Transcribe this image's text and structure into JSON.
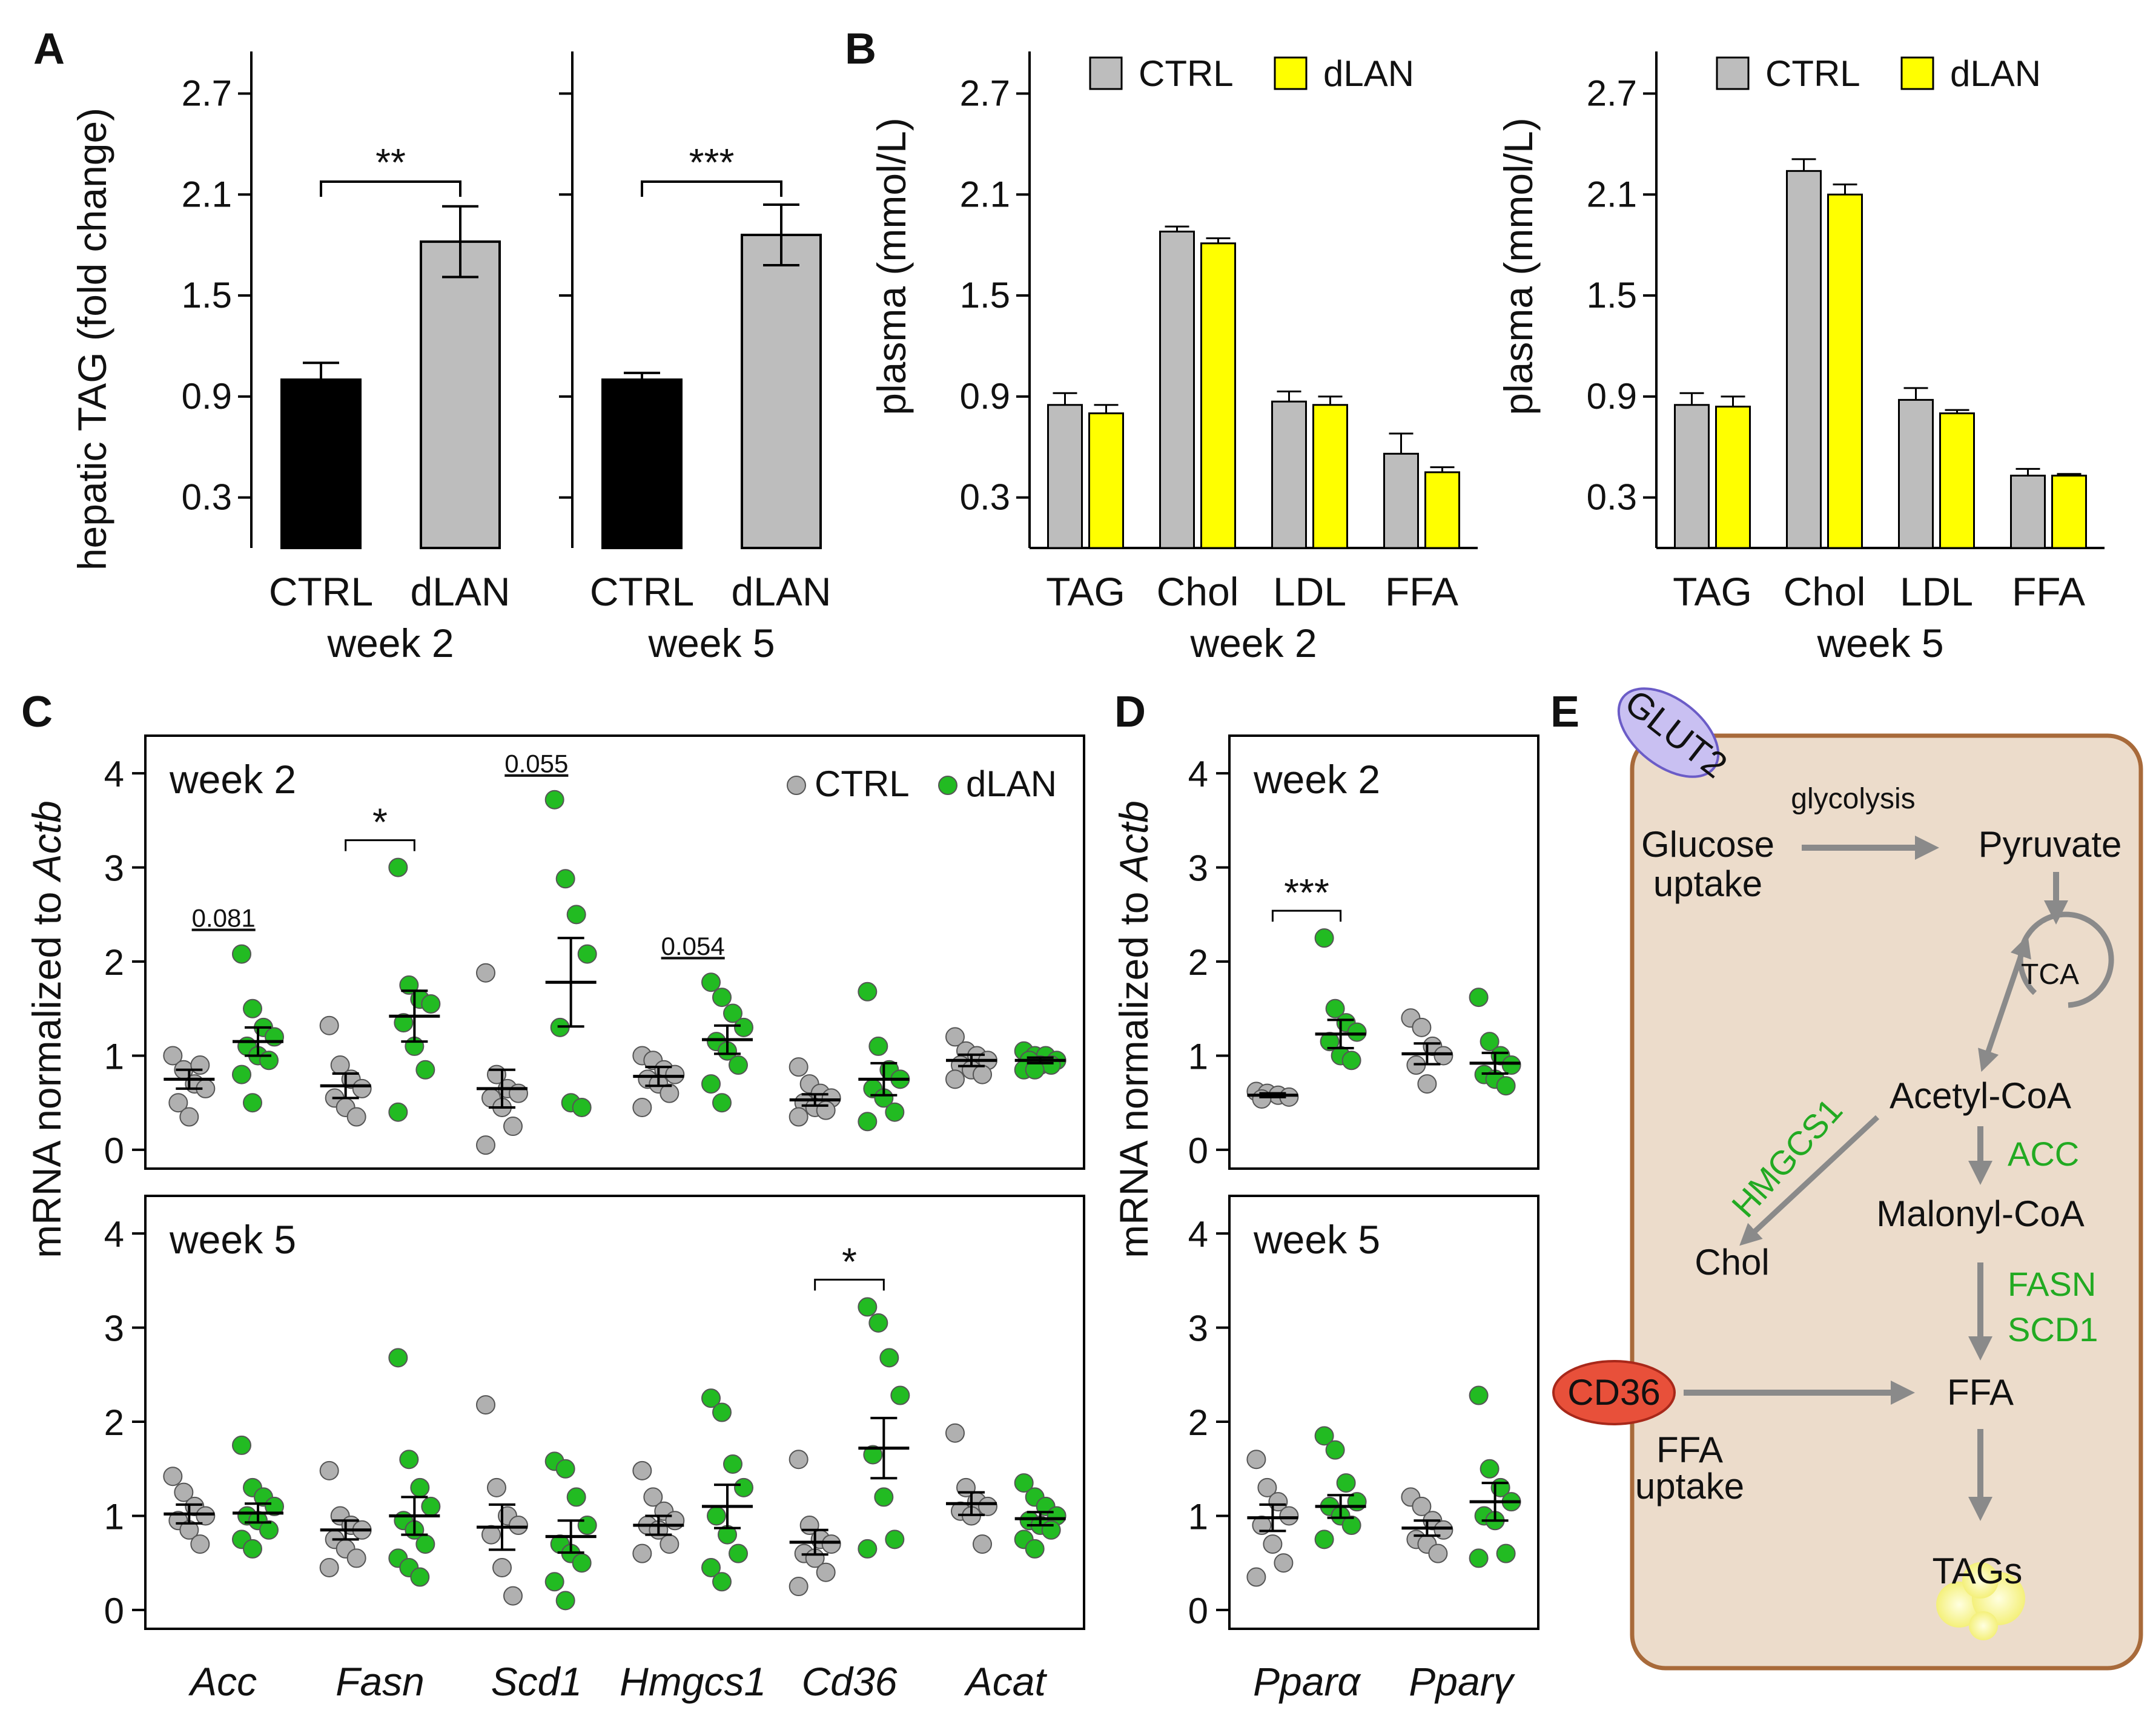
{
  "panels": {
    "A": "A",
    "B": "B",
    "C": "C",
    "D": "D",
    "E": "E"
  },
  "colors": {
    "ctrl_dark": "#000000",
    "dlan_gray": "#bdbdbd",
    "ctrl_gray": "#bdbdbd",
    "dlan_yellow": "#ffff00",
    "dot_ctrl": "#b0b0b0",
    "dot_dlan": "#22bb22",
    "pathway_bg": "#ecdccb",
    "pathway_border": "#a86a3a",
    "enzyme_green": "#22aa22",
    "glut2_fill": "#c9c0f2",
    "cd36_fill": "#e8503a",
    "arrow_gray": "#8a8a8a"
  },
  "chart_data": [
    {
      "id": "A-week2",
      "type": "bar",
      "ylabel": "hepatic TAG (fold change)",
      "ylim": [
        0,
        2.95
      ],
      "yticks": [
        "0.3",
        "0.9",
        "1.5",
        "2.1",
        "2.7"
      ],
      "categories": [
        "CTRL",
        "dLAN"
      ],
      "values": [
        1.0,
        1.82
      ],
      "errors": [
        0.1,
        0.21
      ],
      "xlabel": "week 2",
      "significance": "**"
    },
    {
      "id": "A-week5",
      "type": "bar",
      "ylim": [
        0,
        2.95
      ],
      "categories": [
        "CTRL",
        "dLAN"
      ],
      "values": [
        1.0,
        1.86
      ],
      "errors": [
        0.04,
        0.18
      ],
      "xlabel": "week 5",
      "significance": "***"
    },
    {
      "id": "B-week2",
      "type": "bar",
      "ylabel": "plasma (mmol/L)",
      "ylim": [
        0,
        2.95
      ],
      "yticks": [
        "0.3",
        "0.9",
        "1.5",
        "2.1",
        "2.7"
      ],
      "legend": [
        "CTRL",
        "dLAN"
      ],
      "categories": [
        "TAG",
        "Chol",
        "LDL",
        "FFA"
      ],
      "series": [
        {
          "name": "CTRL",
          "values": [
            0.85,
            1.88,
            0.87,
            0.56
          ],
          "errors": [
            0.07,
            0.03,
            0.06,
            0.12
          ]
        },
        {
          "name": "dLAN",
          "values": [
            0.8,
            1.81,
            0.85,
            0.45
          ],
          "errors": [
            0.05,
            0.03,
            0.05,
            0.03
          ]
        }
      ],
      "xlabel": "week 2"
    },
    {
      "id": "B-week5",
      "type": "bar",
      "ylabel": "plasma (mmol/L)",
      "ylim": [
        0,
        2.95
      ],
      "yticks": [
        "0.3",
        "0.9",
        "1.5",
        "2.1",
        "2.7"
      ],
      "legend": [
        "CTRL",
        "dLAN"
      ],
      "categories": [
        "TAG",
        "Chol",
        "LDL",
        "FFA"
      ],
      "series": [
        {
          "name": "CTRL",
          "values": [
            0.85,
            2.24,
            0.88,
            0.43
          ],
          "errors": [
            0.07,
            0.07,
            0.07,
            0.04
          ]
        },
        {
          "name": "dLAN",
          "values": [
            0.84,
            2.1,
            0.8,
            0.43
          ],
          "errors": [
            0.06,
            0.06,
            0.02,
            0.01
          ]
        }
      ],
      "xlabel": "week 5"
    },
    {
      "id": "C-week2",
      "type": "scatter",
      "ylabel": "mRNA normalized to ",
      "ylabel_italic": "Actb",
      "ylim": [
        -0.2,
        4.4
      ],
      "yticks": [
        "0",
        "1",
        "2",
        "3",
        "4"
      ],
      "title": "week 2",
      "legend": [
        "CTRL",
        "dLAN"
      ],
      "genes": [
        "Acc",
        "Fasn",
        "Scd1",
        "Hmgcs1",
        "Cd36",
        "Acat"
      ],
      "groups": [
        {
          "gene": "Acc",
          "group": "CTRL",
          "values": [
            1.0,
            0.85,
            0.7,
            0.65,
            0.5,
            0.35,
            0.9
          ],
          "mean": 0.75,
          "sem": 0.1
        },
        {
          "gene": "Acc",
          "group": "dLAN",
          "values": [
            2.08,
            1.5,
            1.3,
            1.2,
            1.1,
            1.0,
            0.95,
            0.8,
            0.5
          ],
          "mean": 1.15,
          "sem": 0.15
        },
        {
          "gene": "Fasn",
          "group": "CTRL",
          "values": [
            1.32,
            0.9,
            0.75,
            0.65,
            0.55,
            0.45,
            0.35
          ],
          "mean": 0.68,
          "sem": 0.13
        },
        {
          "gene": "Fasn",
          "group": "dLAN",
          "values": [
            3.0,
            1.75,
            1.6,
            1.55,
            1.35,
            1.1,
            0.85,
            0.4
          ],
          "mean": 1.42,
          "sem": 0.27
        },
        {
          "gene": "Scd1",
          "group": "CTRL",
          "values": [
            1.88,
            0.8,
            0.65,
            0.6,
            0.55,
            0.45,
            0.25,
            0.05
          ],
          "mean": 0.65,
          "sem": 0.2
        },
        {
          "gene": "Scd1",
          "group": "dLAN",
          "values": [
            3.72,
            2.88,
            2.5,
            2.08,
            1.3,
            0.5,
            0.45
          ],
          "mean": 1.78,
          "sem": 0.47
        },
        {
          "gene": "Hmgcs1",
          "group": "CTRL",
          "values": [
            1.0,
            0.95,
            0.85,
            0.8,
            0.75,
            0.7,
            0.6,
            0.45
          ],
          "mean": 0.78,
          "sem": 0.1
        },
        {
          "gene": "Hmgcs1",
          "group": "dLAN",
          "values": [
            1.78,
            1.62,
            1.45,
            1.3,
            1.15,
            1.05,
            0.9,
            0.7,
            0.5
          ],
          "mean": 1.17,
          "sem": 0.15
        },
        {
          "gene": "Cd36",
          "group": "CTRL",
          "values": [
            0.88,
            0.7,
            0.6,
            0.55,
            0.5,
            0.45,
            0.42,
            0.35
          ],
          "mean": 0.53,
          "sem": 0.06
        },
        {
          "gene": "Cd36",
          "group": "dLAN",
          "values": [
            1.68,
            1.1,
            0.85,
            0.75,
            0.65,
            0.55,
            0.4,
            0.3
          ],
          "mean": 0.75,
          "sem": 0.17
        },
        {
          "gene": "Acat",
          "group": "CTRL",
          "values": [
            1.2,
            1.05,
            1.0,
            0.95,
            0.9,
            0.85,
            0.8,
            0.75
          ],
          "mean": 0.95,
          "sem": 0.06
        },
        {
          "gene": "Acat",
          "group": "dLAN",
          "values": [
            1.05,
            1.0,
            1.0,
            0.95,
            0.95,
            0.9,
            0.9,
            0.85,
            0.85
          ],
          "mean": 0.95,
          "sem": 0.03
        }
      ],
      "annotations": [
        {
          "between": "Acc",
          "text": "0.081"
        },
        {
          "between": "Fasn",
          "text": "*"
        },
        {
          "between": "Scd1",
          "text": "0.055"
        },
        {
          "between": "Hmgcs1",
          "text": "0.054"
        }
      ]
    },
    {
      "id": "C-week5",
      "type": "scatter",
      "ylim": [
        -0.2,
        4.4
      ],
      "yticks": [
        "0",
        "1",
        "2",
        "3",
        "4"
      ],
      "title": "week 5",
      "genes": [
        "Acc",
        "Fasn",
        "Scd1",
        "Hmgcs1",
        "Cd36",
        "Acat"
      ],
      "groups": [
        {
          "gene": "Acc",
          "group": "CTRL",
          "values": [
            1.42,
            1.25,
            1.1,
            1.0,
            0.95,
            0.85,
            0.7
          ],
          "mean": 1.02,
          "sem": 0.1
        },
        {
          "gene": "Acc",
          "group": "dLAN",
          "values": [
            1.75,
            1.3,
            1.2,
            1.1,
            1.0,
            0.95,
            0.85,
            0.75,
            0.65
          ],
          "mean": 1.03,
          "sem": 0.1
        },
        {
          "gene": "Fasn",
          "group": "CTRL",
          "values": [
            1.48,
            1.0,
            0.9,
            0.85,
            0.75,
            0.65,
            0.55,
            0.45
          ],
          "mean": 0.85,
          "sem": 0.1
        },
        {
          "gene": "Fasn",
          "group": "dLAN",
          "values": [
            2.68,
            1.6,
            1.3,
            1.1,
            0.95,
            0.85,
            0.7,
            0.55,
            0.45,
            0.35
          ],
          "mean": 1.0,
          "sem": 0.2
        },
        {
          "gene": "Scd1",
          "group": "CTRL",
          "values": [
            2.18,
            1.3,
            1.0,
            0.9,
            0.8,
            0.45,
            0.15
          ],
          "mean": 0.88,
          "sem": 0.24
        },
        {
          "gene": "Scd1",
          "group": "dLAN",
          "values": [
            1.58,
            1.5,
            1.2,
            0.9,
            0.7,
            0.6,
            0.5,
            0.3,
            0.1
          ],
          "mean": 0.78,
          "sem": 0.17
        },
        {
          "gene": "Hmgcs1",
          "group": "CTRL",
          "values": [
            1.48,
            1.2,
            1.05,
            0.95,
            0.9,
            0.85,
            0.7,
            0.6
          ],
          "mean": 0.9,
          "sem": 0.1
        },
        {
          "gene": "Hmgcs1",
          "group": "dLAN",
          "values": [
            2.25,
            2.1,
            1.55,
            1.3,
            1.0,
            0.8,
            0.6,
            0.45,
            0.3
          ],
          "mean": 1.1,
          "sem": 0.23
        },
        {
          "gene": "Cd36",
          "group": "CTRL",
          "values": [
            1.6,
            0.9,
            0.75,
            0.7,
            0.6,
            0.55,
            0.4,
            0.25
          ],
          "mean": 0.72,
          "sem": 0.13
        },
        {
          "gene": "Cd36",
          "group": "dLAN",
          "values": [
            3.22,
            3.05,
            2.68,
            2.28,
            1.65,
            1.2,
            0.75,
            0.65
          ],
          "mean": 1.72,
          "sem": 0.32
        },
        {
          "gene": "Acat",
          "group": "CTRL",
          "values": [
            1.88,
            1.3,
            1.15,
            1.1,
            1.05,
            1.0,
            0.7
          ],
          "mean": 1.13,
          "sem": 0.12
        },
        {
          "gene": "Acat",
          "group": "dLAN",
          "values": [
            1.35,
            1.2,
            1.1,
            1.0,
            0.95,
            0.9,
            0.85,
            0.75,
            0.65
          ],
          "mean": 0.97,
          "sem": 0.07
        }
      ],
      "annotations": [
        {
          "between": "Cd36",
          "text": "*"
        }
      ]
    },
    {
      "id": "D-week2",
      "type": "scatter",
      "ylabel": "mRNA normalized to ",
      "ylabel_italic": "Actb",
      "ylim": [
        -0.2,
        4.4
      ],
      "yticks": [
        "0",
        "1",
        "2",
        "3",
        "4"
      ],
      "title": "week 2",
      "genes": [
        "Pparα",
        "Pparγ"
      ],
      "groups": [
        {
          "gene": "Pparα",
          "group": "CTRL",
          "values": [
            0.62,
            0.6,
            0.58,
            0.56,
            0.54
          ],
          "mean": 0.58,
          "sem": 0.02
        },
        {
          "gene": "Pparα",
          "group": "dLAN",
          "values": [
            2.25,
            1.5,
            1.35,
            1.25,
            1.15,
            1.0,
            0.95
          ],
          "mean": 1.23,
          "sem": 0.15
        },
        {
          "gene": "Pparγ",
          "group": "CTRL",
          "values": [
            1.4,
            1.3,
            1.1,
            1.0,
            0.9,
            0.7
          ],
          "mean": 1.02,
          "sem": 0.11
        },
        {
          "gene": "Pparγ",
          "group": "dLAN",
          "values": [
            1.62,
            1.15,
            1.0,
            0.9,
            0.8,
            0.75,
            0.68
          ],
          "mean": 0.92,
          "sem": 0.11
        }
      ],
      "annotations": [
        {
          "between": "Pparα",
          "text": "***"
        }
      ]
    },
    {
      "id": "D-week5",
      "type": "scatter",
      "ylim": [
        -0.2,
        4.4
      ],
      "yticks": [
        "0",
        "1",
        "2",
        "3",
        "4"
      ],
      "title": "week 5",
      "genes": [
        "Pparα",
        "Pparγ"
      ],
      "groups": [
        {
          "gene": "Pparα",
          "group": "CTRL",
          "values": [
            1.6,
            1.3,
            1.15,
            1.0,
            0.9,
            0.7,
            0.5,
            0.35
          ],
          "mean": 0.98,
          "sem": 0.14
        },
        {
          "gene": "Pparα",
          "group": "dLAN",
          "values": [
            1.85,
            1.7,
            1.35,
            1.15,
            1.1,
            1.0,
            0.9,
            0.75
          ],
          "mean": 1.1,
          "sem": 0.12
        },
        {
          "gene": "Pparγ",
          "group": "CTRL",
          "values": [
            1.2,
            1.1,
            0.95,
            0.85,
            0.75,
            0.7,
            0.6
          ],
          "mean": 0.87,
          "sem": 0.08
        },
        {
          "gene": "Pparγ",
          "group": "dLAN",
          "values": [
            2.28,
            1.5,
            1.3,
            1.15,
            1.0,
            0.95,
            0.6,
            0.55
          ],
          "mean": 1.15,
          "sem": 0.2
        }
      ],
      "annotations": []
    }
  ],
  "pathway": {
    "glut2": "GLUT2",
    "glycolysis": "glycolysis",
    "glucose_line1": "Glucose",
    "glucose_line2": "uptake",
    "pyruvate": "Pyruvate",
    "tca": "TCA",
    "acetyl_coa": "Acetyl-CoA",
    "hmgcs1": "HMGCS1",
    "acc": "ACC",
    "malonyl_coa": "Malonyl-CoA",
    "chol": "Chol",
    "fasn": "FASN",
    "scd1": "SCD1",
    "cd36": "CD36",
    "ffa": "FFA",
    "ffa_uptake_line1": "FFA",
    "ffa_uptake_line2": "uptake",
    "tags": "TAGs"
  }
}
